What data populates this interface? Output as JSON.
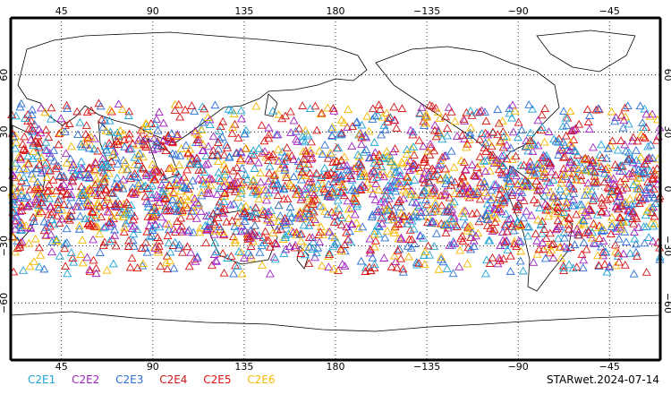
{
  "map": {
    "projection": "equirectangular",
    "center_longitude": 180,
    "lon_range": [
      20,
      340
    ],
    "lat_range": [
      -90,
      90
    ],
    "top_ticks": [
      "45",
      "90",
      "135",
      "180",
      "−135",
      "−90",
      "−45"
    ],
    "bottom_ticks": [
      "45",
      "90",
      "135",
      "180",
      "−135",
      "−90",
      "−45"
    ],
    "top_tick_lons": [
      45,
      90,
      135,
      180,
      225,
      270,
      315
    ],
    "lat_ticks": [
      "60",
      "30",
      "0",
      "−30",
      "−60"
    ],
    "lat_tick_values": [
      60,
      30,
      0,
      -30,
      -60
    ],
    "grid": "dotted",
    "marker": "open-triangle",
    "station_lat_band": [
      -45,
      45
    ]
  },
  "legend": {
    "items": [
      {
        "label": "C2E1",
        "color": "#1fa3d6"
      },
      {
        "label": "C2E2",
        "color": "#a020c0"
      },
      {
        "label": "C2E3",
        "color": "#2c6fd6"
      },
      {
        "label": "C2E4",
        "color": "#d01818"
      },
      {
        "label": "C2E5",
        "color": "#e01010"
      },
      {
        "label": "C2E6",
        "color": "#f5b800"
      }
    ]
  },
  "stamp": "STARwet.2024-07-14"
}
